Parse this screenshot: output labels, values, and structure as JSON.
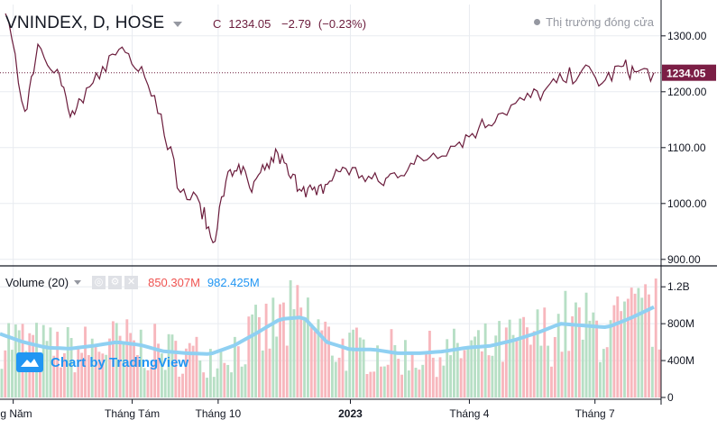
{
  "header": {
    "symbol": "VNINDEX, D, HOSE",
    "close_label": "C",
    "close_value": "1234.05",
    "change": "−2.79",
    "change_pct": "(−0.23%)",
    "market_status": "Thị trường đóng cửa"
  },
  "volume_panel": {
    "title": "Volume (20)",
    "value_volume": "850.307M",
    "value_ma": "982.425M",
    "btn_eye": "◎",
    "btn_gear": "⚙",
    "btn_close": "✕"
  },
  "watermark": {
    "text": "Chart by TradingView"
  },
  "colors": {
    "price_line": "#6b1c3c",
    "label_bg": "#7b1e45",
    "up_volume": "#b7dfc5",
    "down_volume": "#f7b7bd",
    "ma_line": "#8fd0f2",
    "grid": "#e8ebf0"
  },
  "chart_data": [
    {
      "type": "line",
      "title": "VNINDEX, D, HOSE",
      "series": [
        {
          "name": "VNINDEX",
          "x": [
            0,
            0.03,
            0.05,
            0.08,
            0.1,
            0.12,
            0.15,
            0.18,
            0.21,
            0.24,
            0.27,
            0.3,
            0.32,
            0.34,
            0.36,
            0.38,
            0.4,
            0.42,
            0.44,
            0.46,
            0.48,
            0.5,
            0.52,
            0.55,
            0.58,
            0.6,
            0.63,
            0.66,
            0.7,
            0.73,
            0.76,
            0.8,
            0.83,
            0.86,
            0.89,
            0.92,
            0.95,
            0.97,
            1.0
          ],
          "values": [
            1340,
            1165,
            1285,
            1240,
            1155,
            1180,
            1245,
            1280,
            1245,
            1160,
            1020,
            1000,
            930,
            1040,
            1070,
            1020,
            1060,
            1090,
            1045,
            1030,
            1015,
            1040,
            1065,
            1050,
            1035,
            1055,
            1070,
            1090,
            1110,
            1135,
            1160,
            1185,
            1200,
            1220,
            1240,
            1215,
            1245,
            1236,
            1234.05
          ]
        }
      ],
      "ylim": [
        890,
        1340
      ],
      "yticks": [
        "900.00",
        "1000.00",
        "1100.00",
        "1200.00",
        "1300.00"
      ],
      "last_value_label": "1234.05",
      "xticks": [
        "ng Năm",
        "Tháng Tám",
        "Tháng 10",
        "2023",
        "Tháng 4",
        "Tháng 7"
      ],
      "xtick_positions": [
        0.02,
        0.2,
        0.33,
        0.53,
        0.71,
        0.9
      ]
    },
    {
      "type": "bar",
      "title": "Volume (20)",
      "values_mode": "approx_profile",
      "ma_profile": [
        690,
        600,
        540,
        530,
        560,
        600,
        570,
        500,
        480,
        470,
        560,
        700,
        850,
        870,
        600,
        520,
        520,
        480,
        480,
        500,
        540,
        560,
        620,
        700,
        800,
        780,
        760,
        860,
        980
      ],
      "ylim": [
        0,
        1300
      ],
      "yticks": [
        "0",
        "400M",
        "800M",
        "1.2B"
      ]
    }
  ]
}
